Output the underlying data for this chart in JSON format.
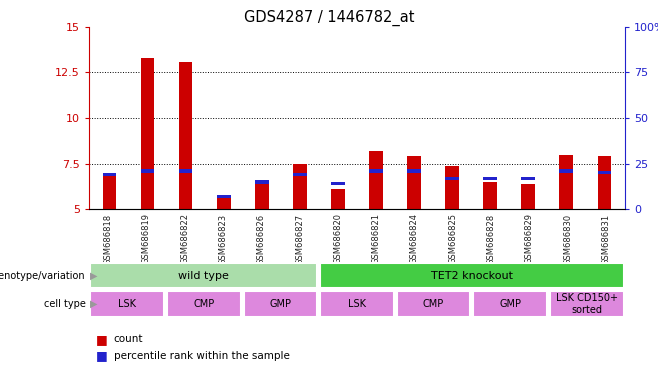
{
  "title": "GDS4287 / 1446782_at",
  "samples": [
    "GSM686818",
    "GSM686819",
    "GSM686822",
    "GSM686823",
    "GSM686826",
    "GSM686827",
    "GSM686820",
    "GSM686821",
    "GSM686824",
    "GSM686825",
    "GSM686828",
    "GSM686829",
    "GSM686830",
    "GSM686831"
  ],
  "count_values": [
    6.9,
    13.3,
    13.1,
    5.7,
    6.4,
    7.5,
    6.1,
    8.2,
    7.9,
    7.4,
    6.5,
    6.4,
    8.0,
    7.9
  ],
  "percentile_pct": [
    19,
    21,
    21,
    7,
    15,
    19,
    14,
    21,
    21,
    17,
    17,
    17,
    21,
    20
  ],
  "ymin": 5,
  "ymax": 15,
  "yleft_ticks": [
    5,
    7.5,
    10,
    12.5,
    15
  ],
  "yright_ticks": [
    0,
    25,
    50,
    75,
    100
  ],
  "bar_color": "#cc0000",
  "blue_color": "#2222cc",
  "genotype_groups": [
    {
      "label": "wild type",
      "start": 0,
      "end": 5,
      "color": "#aaddaa"
    },
    {
      "label": "TET2 knockout",
      "start": 6,
      "end": 13,
      "color": "#44cc44"
    }
  ],
  "cell_type_groups": [
    {
      "label": "LSK",
      "start": 0,
      "end": 1
    },
    {
      "label": "CMP",
      "start": 2,
      "end": 3
    },
    {
      "label": "GMP",
      "start": 4,
      "end": 5
    },
    {
      "label": "LSK",
      "start": 6,
      "end": 7
    },
    {
      "label": "CMP",
      "start": 8,
      "end": 9
    },
    {
      "label": "GMP",
      "start": 10,
      "end": 11
    },
    {
      "label": "LSK CD150+\nsorted",
      "start": 12,
      "end": 13
    }
  ],
  "cell_type_color": "#dd88dd",
  "sample_bg_color": "#cccccc",
  "left_ylabel_color": "#cc0000",
  "right_ylabel_color": "#2222cc"
}
